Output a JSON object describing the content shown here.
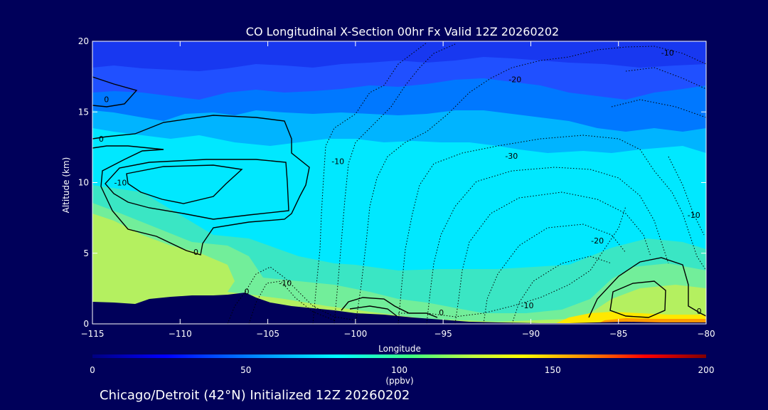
{
  "chart_data": {
    "type": "heatmap",
    "title": "CO Longitudinal X-Section 00hr  Fx Valid 12Z 20260202",
    "subtitle": "Chicago/Detroit (42°N) Initialized 12Z 20260202",
    "xlabel": "Longitude",
    "ylabel": "Altitude (km)",
    "xlim": [
      -115,
      -80
    ],
    "ylim": [
      0,
      20
    ],
    "x_ticks": [
      -115,
      -110,
      -105,
      -100,
      -95,
      -90,
      -85,
      -80
    ],
    "y_ticks": [
      0,
      5,
      10,
      15,
      20
    ],
    "x_tick_labels": [
      "−115",
      "−110",
      "−105",
      "−100",
      "−95",
      "−90",
      "−85",
      "−80"
    ],
    "y_tick_labels": [
      "0",
      "5",
      "10",
      "15",
      "20"
    ],
    "colorbar": {
      "min": 0,
      "max": 200,
      "ticks": [
        0,
        50,
        100,
        150,
        200
      ],
      "tick_labels": [
        "0",
        "50",
        "100",
        "150",
        "200"
      ],
      "units": "(ppbv)",
      "colors": [
        "#000080",
        "#0000ff",
        "#0096ff",
        "#00ffff",
        "#40ff80",
        "#c0ff40",
        "#ffff00",
        "#ff9000",
        "#ff0000",
        "#800000"
      ]
    },
    "contour_labels": [
      {
        "text": "0",
        "x": -114.2,
        "y": 15.9
      },
      {
        "text": "0",
        "x": -114.5,
        "y": 13.1
      },
      {
        "text": "0",
        "x": -109.1,
        "y": 5.1
      },
      {
        "text": "0",
        "x": -106.2,
        "y": 2.3
      },
      {
        "text": "0",
        "x": -95.1,
        "y": 0.8
      },
      {
        "text": "0",
        "x": -80.4,
        "y": 0.9
      },
      {
        "text": "-10",
        "x": -113.4,
        "y": 10.0
      },
      {
        "text": "-10",
        "x": -101.0,
        "y": 11.5
      },
      {
        "text": "-10",
        "x": -104.0,
        "y": 2.9
      },
      {
        "text": "-10",
        "x": -90.2,
        "y": 1.3
      },
      {
        "text": "-10",
        "x": -80.7,
        "y": 7.7
      },
      {
        "text": "-10",
        "x": -82.2,
        "y": 19.2
      },
      {
        "text": "-20",
        "x": -90.9,
        "y": 17.3
      },
      {
        "text": "-20",
        "x": -86.2,
        "y": 5.9
      },
      {
        "text": "-30",
        "x": -91.1,
        "y": 11.9
      }
    ]
  }
}
